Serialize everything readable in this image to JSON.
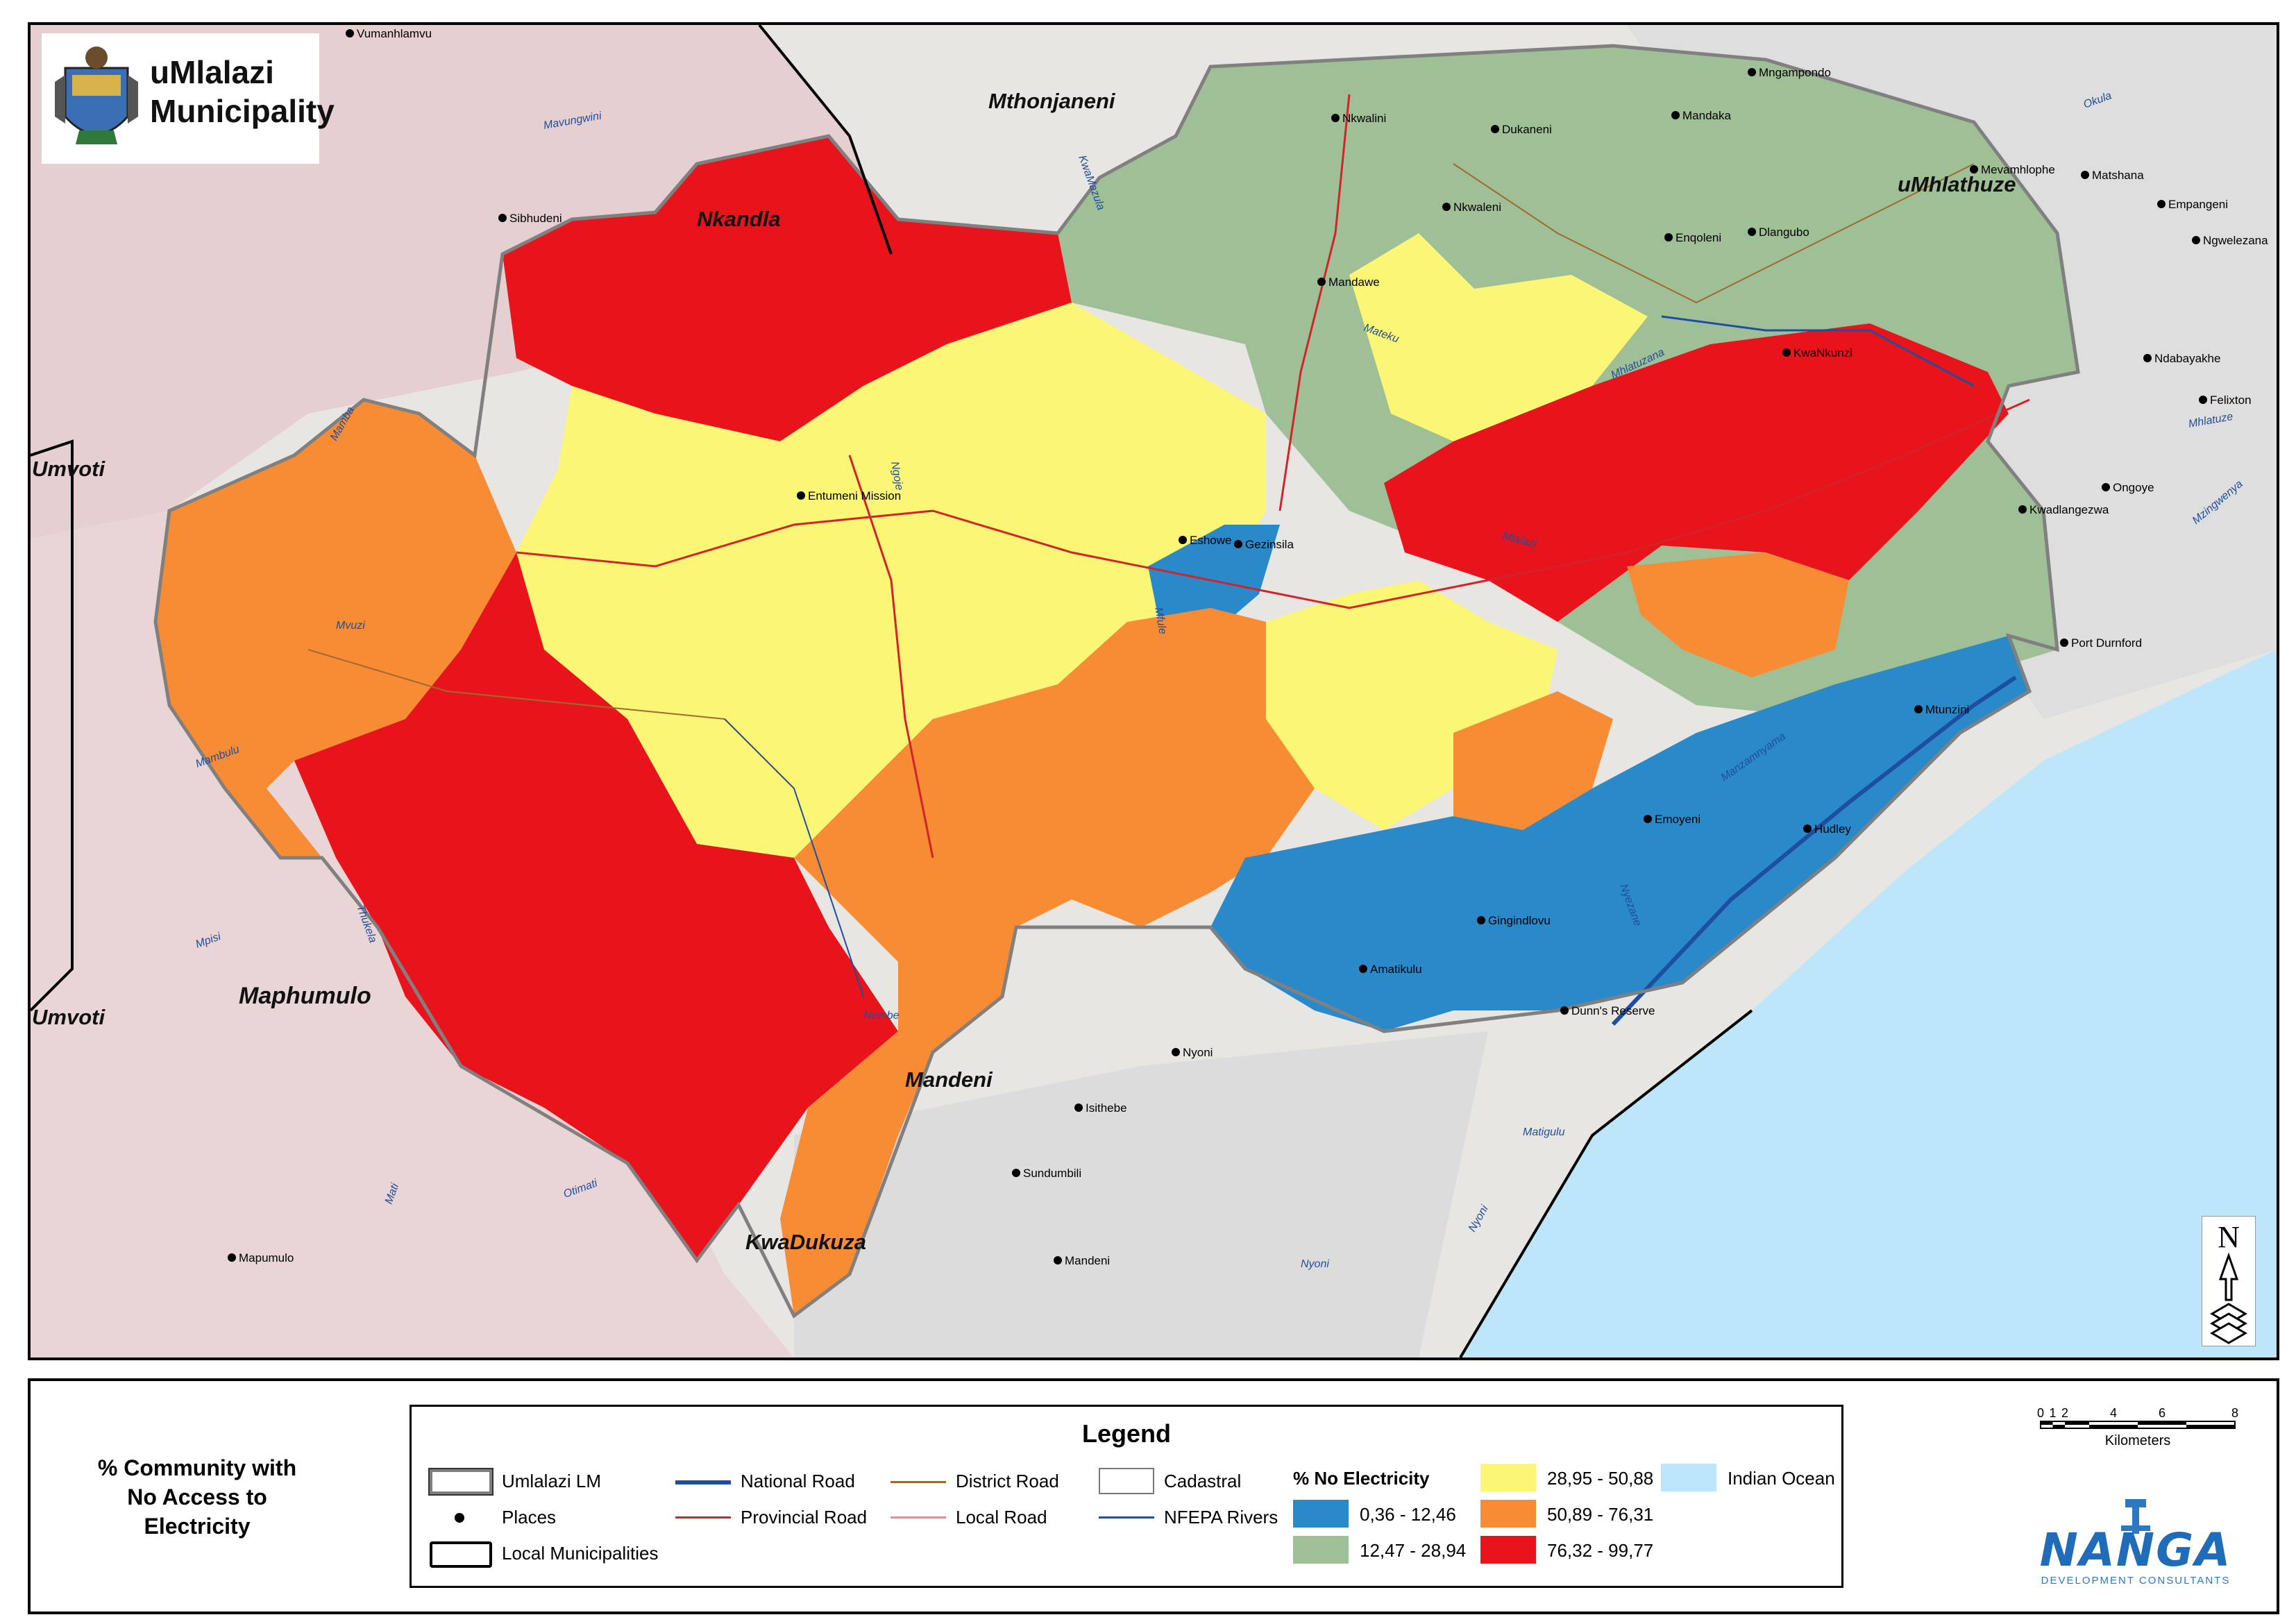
{
  "title": "uMlalazi\nMunicipality",
  "subject": "% Community with\nNo Access to\nElectricity",
  "legend": {
    "title": "Legend",
    "items": {
      "umlalazi_lm": "Umlalazi LM",
      "places": "Places",
      "local_munis": "Local Municipalities",
      "national_road": "National Road",
      "provincial_road": "Provincial Road",
      "district_road": "District Road",
      "local_road": "Local Road",
      "cadastral": "Cadastral",
      "nfepa_rivers": "NFEPA Rivers",
      "indian_ocean": "Indian Ocean"
    },
    "class_heading": "% No Electricity",
    "classes": [
      {
        "label": "0,36 - 12,46",
        "color": "#2a8ac9"
      },
      {
        "label": "12,47 - 28,94",
        "color": "#9fbf96"
      },
      {
        "label": "28,95 - 50,88",
        "color": "#fbf675"
      },
      {
        "label": "50,89 - 76,31",
        "color": "#f78c35"
      },
      {
        "label": "76,32 - 99,77",
        "color": "#e8131b"
      }
    ],
    "ocean_color": "#bee6fb"
  },
  "scale": {
    "ticks": [
      "0",
      "1",
      "2",
      "4",
      "6",
      "8"
    ],
    "unit": "Kilometers"
  },
  "north_label": "N",
  "logo": {
    "name": "NANGA",
    "tagline": "DEVELOPMENT CONSULTANTS"
  },
  "municipalities": [
    "Mthonjaneni",
    "Nkandla",
    "uMhlathuze",
    "Umvoti",
    "Umvoti",
    "Maphumulo",
    "Mandeni",
    "KwaDukuza"
  ],
  "places": [
    "Vumanhlamvu",
    "Mngampondo",
    "Nkwalini",
    "Mandaka",
    "Dukaneni",
    "Nkwaleni",
    "Sibhudeni",
    "Mevamhlophe",
    "Matshana",
    "Empangeni",
    "Ngwelezana",
    "Enqoleni",
    "Dlangubo",
    "Mandawe",
    "KwaNkunzi",
    "Ndabayakhe",
    "Felixton",
    "Entumeni Mission",
    "Ongoye",
    "Kwadlangezwa",
    "Eshowe",
    "Gezinsila",
    "Port Durnford",
    "Mtunzini",
    "Emoyeni",
    "Hudley",
    "Gingindlovu",
    "Amatikulu",
    "Dunn's Reserve",
    "Nyoni",
    "Isithebe",
    "Sundumbili",
    "Mandeni",
    "Mapumulo"
  ],
  "rivers": [
    "Mavungwini",
    "Okula",
    "Mhlatuze",
    "Mzingwenya",
    "Mhlatuzana",
    "Mateku",
    "Mlalazi",
    "Mamba",
    "Mambulu",
    "Thukela",
    "Mvuzi",
    "Mpisi",
    "Mati",
    "Otimati",
    "Nembe",
    "Matigulu",
    "Nyoni",
    "Nyoni",
    "Manzamnyama",
    "Nyezane",
    "KwaMazula",
    "Ngoje",
    "Mfule"
  ]
}
